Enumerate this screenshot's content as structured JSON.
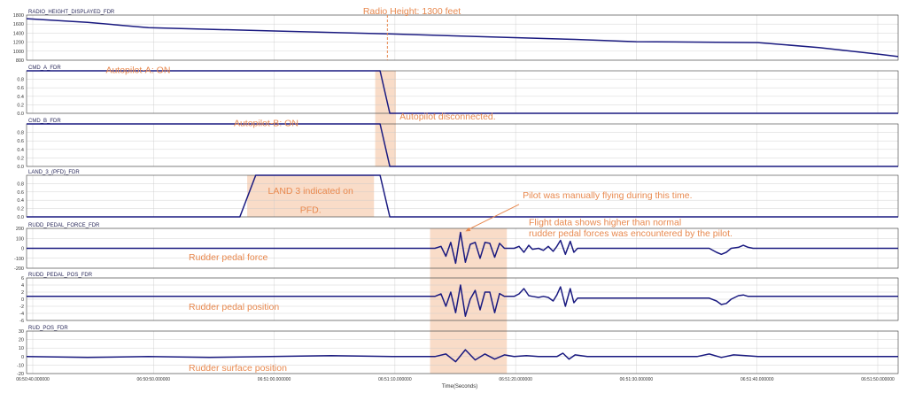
{
  "chart_data": {
    "type": "line",
    "xlabel": "Time(Seconds)",
    "x_tick_labels": [
      "06:50:40.000000",
      "06:50:50.000000",
      "06:51:00.000000",
      "06:51:10.000000",
      "06:51:20.000000",
      "06:51:30.000000",
      "06:51:40.000000",
      "06:51:50.000000"
    ],
    "xlim": [
      0,
      71.5
    ],
    "colors": {
      "line": "#1a1a80",
      "highlight": "#f9dcc8",
      "annotation": "#e8894f",
      "grid": "#c8c8c8",
      "axis": "#3a3a3a"
    },
    "panels": [
      {
        "title": "RADIO_HEIGHT_DISPLAYED_FDR",
        "ylim": [
          800,
          1800
        ],
        "yticks": [
          "1800",
          "1600",
          "1400",
          "1200",
          "1000",
          "800"
        ],
        "series": [
          {
            "x": [
              0,
              5,
              10,
              20,
              30,
              40,
              45,
              50,
              60,
              65,
              70,
              71.5
            ],
            "y": [
              1720,
              1640,
              1520,
              1450,
              1380,
              1300,
              1260,
              1210,
              1190,
              1080,
              930,
              880
            ]
          }
        ]
      },
      {
        "title": "CMD_A_FDR",
        "ylim": [
          0,
          1
        ],
        "yticks": [
          "0.8",
          "0.6",
          "0.4",
          "0.2",
          "0.0"
        ],
        "series": [
          {
            "x": [
              0,
              29,
              29.4,
              29.8,
              71.5
            ],
            "y": [
              1,
              1,
              0.5,
              0,
              0
            ]
          }
        ]
      },
      {
        "title": "CMD_B_FDR",
        "ylim": [
          0,
          1
        ],
        "yticks": [
          "0.8",
          "0.6",
          "0.4",
          "0.2",
          "0.0"
        ],
        "series": [
          {
            "x": [
              0,
              29,
              29.4,
              29.8,
              71.5
            ],
            "y": [
              1,
              1,
              0.5,
              0,
              0
            ]
          }
        ]
      },
      {
        "title": "LAND_3_(PFD)_FDR",
        "ylim": [
          0,
          1
        ],
        "yticks": [
          "0.8",
          "0.6",
          "0.4",
          "0.2",
          "0.0"
        ],
        "series": [
          {
            "x": [
              0,
              17.5,
              18.8,
              29,
              29.8,
              71.5
            ],
            "y": [
              0,
              0,
              1,
              1,
              0,
              0
            ]
          }
        ]
      },
      {
        "title": "RUDD_PEDAL_FORCE_FDR",
        "ylim": [
          -200,
          200
        ],
        "yticks": [
          "200",
          "100",
          "0",
          "-100",
          "-200"
        ],
        "series": [
          {
            "x": [
              0,
              33.5,
              34,
              34.4,
              34.8,
              35.2,
              35.6,
              36,
              36.4,
              36.8,
              37.2,
              37.6,
              38,
              38.4,
              38.8,
              39.2,
              40,
              40.4,
              40.8,
              41.2,
              41.5,
              42,
              42.4,
              42.8,
              43.2,
              43.5,
              43.8,
              44.2,
              44.6,
              44.9,
              45.2,
              45.6,
              50,
              56,
              56.6,
              57,
              57.4,
              57.8,
              58.4,
              58.8,
              59.2,
              59.6,
              60,
              71.5
            ],
            "y": [
              0,
              0,
              20,
              -80,
              60,
              -150,
              160,
              -140,
              40,
              60,
              -100,
              60,
              50,
              -90,
              50,
              0,
              0,
              20,
              -40,
              30,
              -10,
              0,
              -20,
              20,
              -30,
              20,
              80,
              -60,
              70,
              -40,
              0,
              0,
              0,
              0,
              -40,
              -60,
              -40,
              0,
              10,
              30,
              10,
              0,
              0,
              0
            ]
          }
        ]
      },
      {
        "title": "RUDD_PEDAL_POS_FDR",
        "ylim": [
          -6,
          6
        ],
        "yticks": [
          "6",
          "4",
          "2",
          "0",
          "-2",
          "-4",
          "-6"
        ],
        "series": [
          {
            "x": [
              0,
              33.5,
              34,
              34.4,
              34.8,
              35.2,
              35.6,
              36,
              36.4,
              36.8,
              37.2,
              37.6,
              38,
              38.4,
              38.8,
              39.2,
              40,
              40.4,
              40.8,
              41.2,
              41.5,
              42,
              42.4,
              42.8,
              43.2,
              43.5,
              43.8,
              44.2,
              44.6,
              44.9,
              45.2,
              45.6,
              50,
              56,
              56.6,
              57,
              57.4,
              57.8,
              58.4,
              58.8,
              59.2,
              59.6,
              60,
              71.5
            ],
            "y": [
              0.8,
              0.8,
              1.5,
              -2,
              2,
              -3.8,
              4,
              -4.8,
              0,
              2.5,
              -3,
              2,
              2,
              -3.8,
              1.6,
              0.8,
              0.8,
              1.5,
              3,
              1,
              0.8,
              0.5,
              0.8,
              0.5,
              -0.5,
              1.2,
              3.5,
              -2,
              3,
              -1,
              0.3,
              0.3,
              0.3,
              0.3,
              -0.5,
              -1.5,
              -1.2,
              0,
              1,
              1.2,
              0.8,
              0.8,
              0.8,
              0.8
            ]
          }
        ]
      },
      {
        "title": "RUD_POS_FDR",
        "ylim": [
          -20,
          30
        ],
        "yticks": [
          "30",
          "20",
          "10",
          "0",
          "-10",
          "-20"
        ],
        "series": [
          {
            "x": [
              0,
              5,
              10,
              15,
              20,
              25,
              30,
              33.5,
              34.4,
              35.2,
              36,
              36.8,
              37.6,
              38.4,
              39.2,
              40,
              41,
              42,
              43.5,
              44,
              44.5,
              45,
              46,
              50,
              55,
              56,
              57,
              58,
              59,
              60,
              65,
              71.5
            ],
            "y": [
              0,
              -1,
              0,
              -1,
              0,
              1,
              0,
              0,
              3,
              -6,
              8,
              -4,
              3,
              -3,
              2,
              0,
              1,
              0,
              0,
              4,
              -3,
              2,
              0,
              0,
              0,
              3,
              -1,
              2,
              1,
              0,
              0,
              0
            ]
          }
        ]
      }
    ],
    "highlights": [
      {
        "panels": [
          1,
          2
        ],
        "x0": 28.6,
        "x1": 30.3
      },
      {
        "panels": [
          3
        ],
        "x0": 18.1,
        "x1": 28.5
      },
      {
        "panels": [
          4,
          5,
          6
        ],
        "x0": 33.1,
        "x1": 39.4
      }
    ],
    "annotations": [
      {
        "text": "Radio Height: 1300 feet",
        "panel": 0,
        "x": 27.6,
        "y": 1820
      },
      {
        "text": "Autopilot-A: ON",
        "panel": 1,
        "x": 6.5,
        "y": 0.95
      },
      {
        "text": "Autopilot disconnected.",
        "panel": 1,
        "x": 30.6,
        "y": -0.15
      },
      {
        "text": "Autopilot-B: ON",
        "panel": 2,
        "x": 17,
        "y": 0.95
      },
      {
        "text": "LAND 3 indicated on",
        "panel": 3,
        "x": 23.3,
        "y": 0.55,
        "anchor": "middle"
      },
      {
        "text": "PFD.",
        "panel": 3,
        "x": 23.3,
        "y": 0.1,
        "anchor": "middle"
      },
      {
        "text": "Pilot was manually flying during this time.",
        "panel": 3,
        "x": 40.7,
        "y": 0.45
      },
      {
        "text": "Flight data shows higher than normal",
        "panel": 4,
        "x": 41.2,
        "y": 230
      },
      {
        "text": "rudder pedal forces was encountered by the pilot.",
        "panel": 4,
        "x": 41.2,
        "y": 120
      },
      {
        "text": "Rudder pedal force",
        "panel": 4,
        "x": 13.3,
        "y": -120
      },
      {
        "text": "Rudder pedal position",
        "panel": 5,
        "x": 13.3,
        "y": -3
      },
      {
        "text": "Rudder surface position",
        "panel": 6,
        "x": 13.3,
        "y": -17
      }
    ],
    "arrow": {
      "from_panel": 3,
      "from": [
        40.4,
        0.3
      ],
      "to_panel": 4,
      "to": [
        36,
        170
      ]
    },
    "dashed_marker": {
      "x": 29.6,
      "panel": 0,
      "y_top": 1800,
      "y_bottom": 1300
    }
  }
}
